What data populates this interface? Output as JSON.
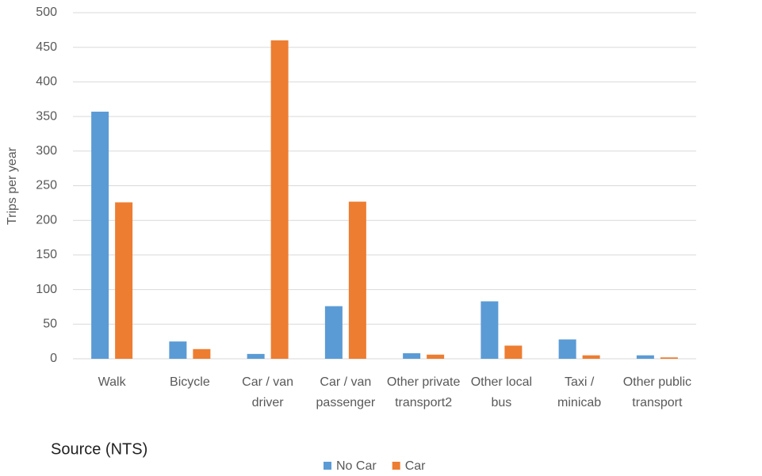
{
  "chart_data": {
    "type": "bar",
    "y_label": "Trips per year",
    "annotation": "Source (NTS)",
    "categories": [
      "Walk",
      "Bicycle",
      "Car / van driver",
      "Car / van passenger",
      "Other private transport2",
      "Other local bus",
      "Taxi / minicab",
      "Other public transport"
    ],
    "series": [
      {
        "name": "No Car",
        "color": "#5b9bd5",
        "values": [
          357,
          25,
          7,
          76,
          8,
          83,
          28,
          5
        ]
      },
      {
        "name": "Car",
        "color": "#ed7d31",
        "values": [
          226,
          14,
          460,
          227,
          6,
          19,
          5,
          2
        ]
      }
    ],
    "ylim": [
      0,
      500
    ],
    "yticks": [
      0,
      50,
      100,
      150,
      200,
      250,
      300,
      350,
      400,
      450,
      500
    ],
    "grid": true
  }
}
